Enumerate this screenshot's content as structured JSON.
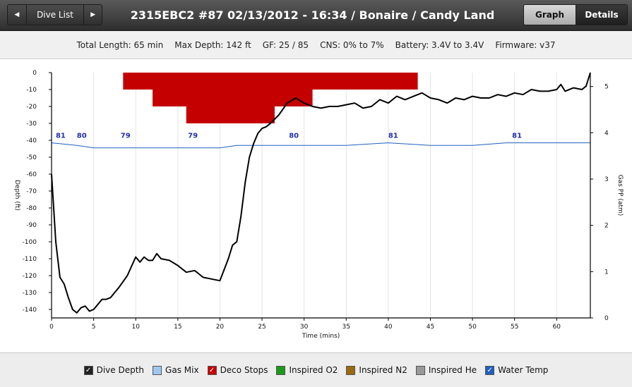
{
  "nav": {
    "prev_icon": "◀",
    "dive_list_label": "Dive List",
    "next_icon": "▶"
  },
  "title": "2315EBC2 #87 02/13/2012 - 16:34  / Bonaire / Candy Land",
  "view_tabs": {
    "graph": "Graph",
    "details": "Details"
  },
  "info": {
    "total_length": "Total Length: 65 min",
    "max_depth": "Max Depth: 142 ft",
    "gf": "GF: 25 / 85",
    "cns": "CNS: 0% to 7%",
    "battery": "Battery: 3.4V to 3.4V",
    "firmware": "Firmware: v37"
  },
  "legend": [
    {
      "label": "Dive Depth",
      "checked": true,
      "color": "#222222"
    },
    {
      "label": "Gas Mix",
      "checked": false,
      "color": "#9cc8f0"
    },
    {
      "label": "Deco Stops",
      "checked": true,
      "color": "#c40000"
    },
    {
      "label": "Inspired O2",
      "checked": false,
      "color": "#1a9a1a"
    },
    {
      "label": "Inspired N2",
      "checked": false,
      "color": "#9a6a10"
    },
    {
      "label": "Inspired He",
      "checked": false,
      "color": "#999999"
    },
    {
      "label": "Water Temp",
      "checked": true,
      "color": "#1f5fc0"
    }
  ],
  "chart_data": {
    "type": "line",
    "xlabel": "Time (mins)",
    "ylabel": "Depth (ft)",
    "y2label": "Gas PP (atm)",
    "xlim": [
      0,
      64
    ],
    "ylim": [
      -145,
      0
    ],
    "y2lim": [
      0,
      5.3
    ],
    "xticks": [
      0,
      5,
      10,
      15,
      20,
      25,
      30,
      35,
      40,
      45,
      50,
      55,
      60
    ],
    "yticks": [
      0,
      -10,
      -20,
      -30,
      -40,
      -50,
      -60,
      -70,
      -80,
      -90,
      -100,
      -110,
      -120,
      -130,
      -140
    ],
    "y2ticks": [
      0,
      1,
      2,
      3,
      4,
      5
    ],
    "series": [
      {
        "name": "Dive Depth",
        "color": "#000000",
        "x": [
          0,
          0.5,
          1,
          1.5,
          2,
          2.5,
          3,
          3.5,
          4,
          4.5,
          5,
          5.5,
          6,
          6.5,
          7,
          7.5,
          8,
          9,
          10,
          10.5,
          11,
          11.5,
          12,
          12.5,
          13,
          14,
          15,
          16,
          17,
          18,
          19,
          20,
          21,
          21.5,
          22,
          22.5,
          23,
          23.5,
          24,
          24.5,
          25,
          25.5,
          26,
          27,
          28,
          29,
          30,
          31,
          32,
          33,
          34,
          35,
          36,
          37,
          38,
          39,
          40,
          41,
          42,
          43,
          44,
          45,
          46,
          47,
          48,
          49,
          50,
          51,
          52,
          53,
          54,
          55,
          56,
          57,
          58,
          59,
          60,
          60.5,
          61,
          62,
          63,
          63.5,
          64
        ],
        "y": [
          -60,
          -100,
          -121,
          -125,
          -133,
          -140,
          -142,
          -139,
          -138,
          -141,
          -140,
          -137,
          -134,
          -134,
          -133,
          -130,
          -127,
          -120,
          -109,
          -112,
          -109,
          -111,
          -111,
          -107,
          -110,
          -111,
          -114,
          -118,
          -117,
          -121,
          -122,
          -123,
          -110,
          -102,
          -100,
          -85,
          -65,
          -50,
          -42,
          -36,
          -33,
          -32,
          -30,
          -25,
          -18,
          -15,
          -18,
          -20,
          -21,
          -20,
          -20,
          -19,
          -18,
          -21,
          -20,
          -16,
          -18,
          -14,
          -16,
          -14,
          -12,
          -15,
          -16,
          -18,
          -15,
          -16,
          -14,
          -15,
          -15,
          -13,
          -14,
          -12,
          -13,
          -10,
          -11,
          -11,
          -10,
          -7,
          -11,
          -9,
          -10,
          -8,
          0
        ]
      },
      {
        "name": "Water Temp",
        "color": "#1f5fc0",
        "x": [
          0,
          3,
          5,
          10,
          15,
          20,
          22,
          25,
          30,
          35,
          40,
          45,
          50,
          54,
          56,
          60,
          64
        ],
        "y": [
          81,
          80,
          79,
          79,
          79,
          79,
          80,
          80,
          80,
          80,
          81,
          80,
          80,
          81,
          81,
          81,
          81
        ]
      },
      {
        "name": "Deco Stops",
        "color": "#c40000",
        "steps": [
          {
            "x0": 8.5,
            "x1": 43.5,
            "depth": 10
          },
          {
            "x0": 12,
            "x1": 31,
            "depth": 20
          },
          {
            "x0": 16,
            "x1": 26.5,
            "depth": 30
          }
        ]
      }
    ],
    "temp_labels": [
      {
        "x": 0.5,
        "text": "81"
      },
      {
        "x": 3.0,
        "text": "80"
      },
      {
        "x": 8.2,
        "text": "79"
      },
      {
        "x": 16.2,
        "text": "79"
      },
      {
        "x": 28.2,
        "text": "80"
      },
      {
        "x": 40.0,
        "text": "81"
      },
      {
        "x": 54.7,
        "text": "81"
      }
    ]
  }
}
